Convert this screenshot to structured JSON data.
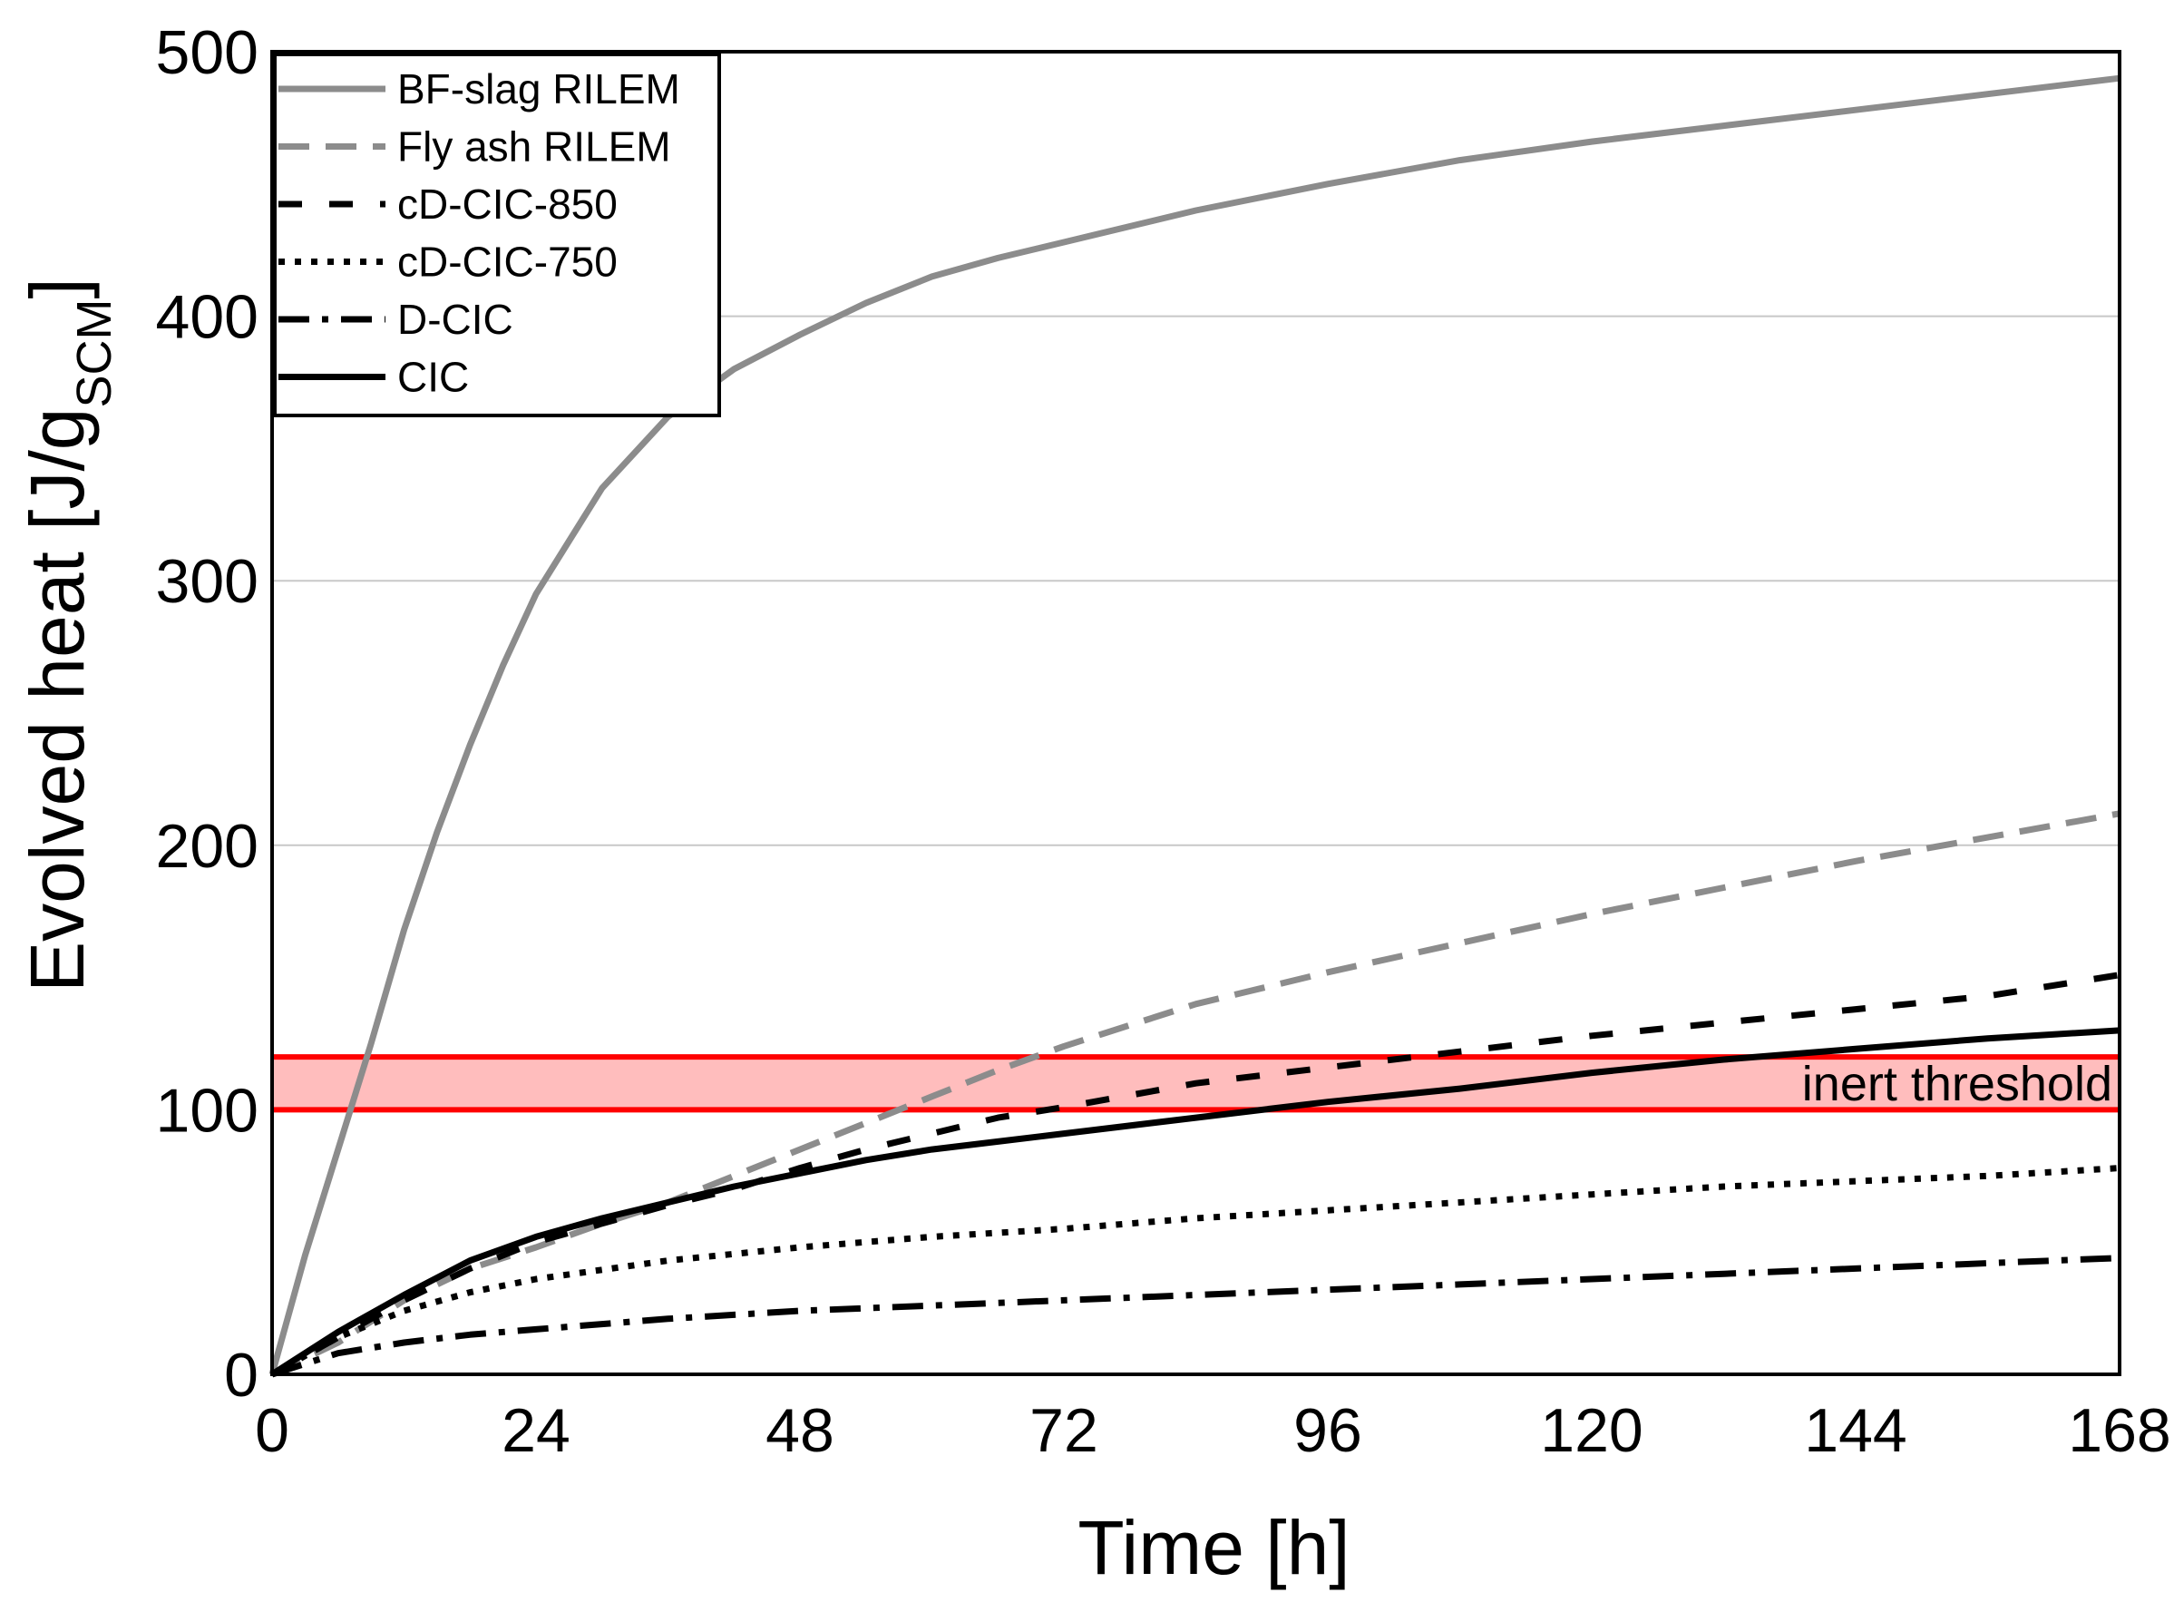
{
  "chart_data": {
    "type": "line",
    "title": "",
    "xlabel": "Time [h]",
    "ylabel_main": "Evolved heat [J/g",
    "ylabel_sub": "SCM",
    "ylabel_end": "]",
    "xlim": [
      0,
      168
    ],
    "ylim": [
      0,
      500
    ],
    "xticks": [
      0,
      24,
      48,
      72,
      96,
      120,
      144,
      168
    ],
    "yticks": [
      0,
      100,
      200,
      300,
      400,
      500
    ],
    "grid": "horizontal",
    "legend_position": "top-left",
    "threshold_band": {
      "label": "inert threshold",
      "y_range": [
        100,
        120
      ],
      "color": "#ff0000",
      "fill_color": "#ffbdbd"
    },
    "series": [
      {
        "name": "BF-slag RILEM",
        "color": "#8c8c8c",
        "dash": "solid",
        "points": [
          [
            0,
            0
          ],
          [
            3,
            45
          ],
          [
            6,
            85
          ],
          [
            9,
            125
          ],
          [
            12,
            168
          ],
          [
            15,
            205
          ],
          [
            18,
            238
          ],
          [
            21,
            268
          ],
          [
            24,
            295
          ],
          [
            30,
            335
          ],
          [
            36,
            362
          ],
          [
            42,
            380
          ],
          [
            48,
            393
          ],
          [
            54,
            405
          ],
          [
            60,
            415
          ],
          [
            66,
            422
          ],
          [
            72,
            428
          ],
          [
            84,
            440
          ],
          [
            96,
            450
          ],
          [
            108,
            459
          ],
          [
            120,
            466
          ],
          [
            132,
            472
          ],
          [
            144,
            478
          ],
          [
            156,
            484
          ],
          [
            168,
            490
          ]
        ]
      },
      {
        "name": "Fly ash RILEM",
        "color": "#8c8c8c",
        "dash": "dashed",
        "points": [
          [
            0,
            0
          ],
          [
            6,
            12
          ],
          [
            12,
            28
          ],
          [
            18,
            40
          ],
          [
            24,
            48
          ],
          [
            30,
            57
          ],
          [
            36,
            65
          ],
          [
            42,
            75
          ],
          [
            48,
            85
          ],
          [
            54,
            95
          ],
          [
            60,
            105
          ],
          [
            66,
            115
          ],
          [
            72,
            124
          ],
          [
            84,
            140
          ],
          [
            96,
            152
          ],
          [
            108,
            163
          ],
          [
            120,
            174
          ],
          [
            132,
            184
          ],
          [
            144,
            194
          ],
          [
            156,
            203
          ],
          [
            168,
            212
          ]
        ]
      },
      {
        "name": "cD-CIC-850",
        "color": "#000000",
        "dash": "longdash",
        "points": [
          [
            0,
            0
          ],
          [
            6,
            14
          ],
          [
            12,
            28
          ],
          [
            18,
            40
          ],
          [
            24,
            50
          ],
          [
            30,
            57
          ],
          [
            36,
            64
          ],
          [
            42,
            70
          ],
          [
            48,
            78
          ],
          [
            54,
            85
          ],
          [
            60,
            91
          ],
          [
            66,
            97
          ],
          [
            72,
            101
          ],
          [
            84,
            110
          ],
          [
            96,
            116
          ],
          [
            108,
            122
          ],
          [
            120,
            128
          ],
          [
            132,
            133
          ],
          [
            144,
            138
          ],
          [
            156,
            143
          ],
          [
            168,
            151
          ]
        ]
      },
      {
        "name": "cD-CIC-750",
        "color": "#000000",
        "dash": "dotted",
        "points": [
          [
            0,
            0
          ],
          [
            6,
            14
          ],
          [
            12,
            24
          ],
          [
            18,
            31
          ],
          [
            24,
            36
          ],
          [
            36,
            43
          ],
          [
            48,
            48
          ],
          [
            60,
            52
          ],
          [
            72,
            55
          ],
          [
            84,
            59
          ],
          [
            96,
            62
          ],
          [
            108,
            65
          ],
          [
            120,
            68
          ],
          [
            132,
            71
          ],
          [
            144,
            73
          ],
          [
            156,
            75
          ],
          [
            168,
            78
          ]
        ]
      },
      {
        "name": "D-CIC",
        "color": "#000000",
        "dash": "dashdot",
        "points": [
          [
            0,
            0
          ],
          [
            6,
            8
          ],
          [
            12,
            12
          ],
          [
            18,
            15
          ],
          [
            24,
            17
          ],
          [
            36,
            21
          ],
          [
            48,
            24
          ],
          [
            60,
            26
          ],
          [
            72,
            28
          ],
          [
            84,
            30
          ],
          [
            96,
            32
          ],
          [
            108,
            34
          ],
          [
            120,
            36
          ],
          [
            132,
            38
          ],
          [
            144,
            40
          ],
          [
            156,
            42
          ],
          [
            168,
            44
          ]
        ]
      },
      {
        "name": "CIC",
        "color": "#000000",
        "dash": "solid",
        "points": [
          [
            0,
            0
          ],
          [
            6,
            16
          ],
          [
            12,
            30
          ],
          [
            18,
            43
          ],
          [
            24,
            52
          ],
          [
            30,
            59
          ],
          [
            36,
            65
          ],
          [
            42,
            71
          ],
          [
            48,
            76
          ],
          [
            54,
            81
          ],
          [
            60,
            85
          ],
          [
            66,
            88
          ],
          [
            72,
            91
          ],
          [
            84,
            97
          ],
          [
            96,
            103
          ],
          [
            108,
            108
          ],
          [
            120,
            114
          ],
          [
            132,
            119
          ],
          [
            144,
            123
          ],
          [
            156,
            127
          ],
          [
            168,
            130
          ]
        ]
      }
    ]
  }
}
